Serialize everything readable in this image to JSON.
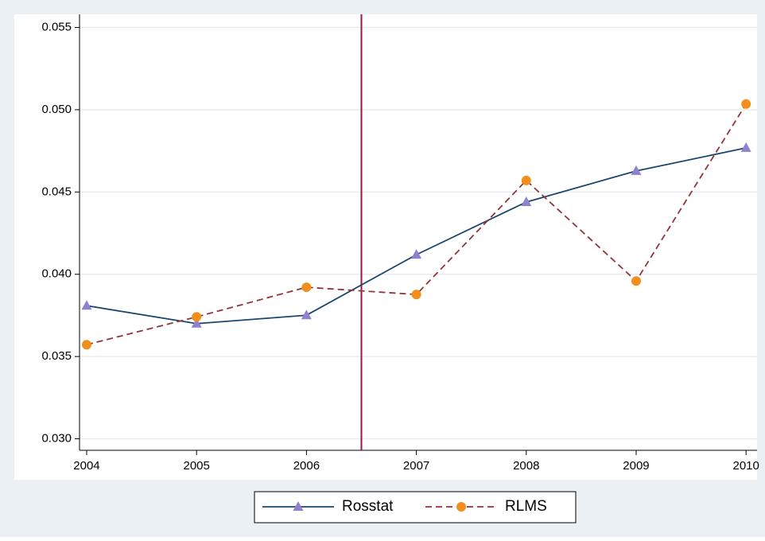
{
  "chart_data": {
    "type": "line",
    "x": [
      2004,
      2005,
      2006,
      2007,
      2008,
      2009,
      2010
    ],
    "series": [
      {
        "name": "Rosstat",
        "color": "#1a476f",
        "marker": "triangle",
        "marker_color": "#9080d0",
        "dash": false,
        "values": [
          0.03809,
          0.037,
          0.03751,
          0.04119,
          0.04439,
          0.04628,
          0.04768
        ]
      },
      {
        "name": "RLMS",
        "color": "#90353b",
        "marker": "circle",
        "marker_color": "#f28e1c",
        "dash": true,
        "values": [
          0.03572,
          0.03741,
          0.03921,
          0.03877,
          0.0457,
          0.03959,
          0.05035
        ]
      }
    ],
    "xlim": [
      2003.935,
      2010.1
    ],
    "ylim": [
      0.0293,
      0.0558
    ],
    "xticks": [
      2004,
      2005,
      2006,
      2007,
      2008,
      2009,
      2010
    ],
    "yticks": [
      {
        "value": 0.03,
        "label": "0.030"
      },
      {
        "value": 0.035,
        "label": "0.035"
      },
      {
        "value": 0.04,
        "label": "0.040"
      },
      {
        "value": 0.045,
        "label": "0.045"
      },
      {
        "value": 0.05,
        "label": "0.050"
      },
      {
        "value": 0.055,
        "label": "0.055"
      }
    ],
    "vline": 2006.5,
    "vline_color": "#a0153e",
    "grid": true,
    "legend": "bottom"
  }
}
